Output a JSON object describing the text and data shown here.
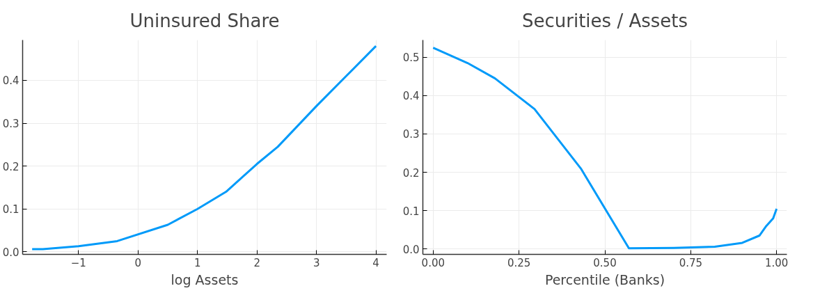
{
  "chart_data": [
    {
      "type": "line",
      "title": "Uninsured Share",
      "xlabel": "log Assets",
      "x": [
        -1.78,
        -1.6,
        -1.0,
        -0.35,
        0.5,
        1.0,
        1.48,
        2.0,
        2.35,
        3.0,
        3.5,
        4.0
      ],
      "series": [
        {
          "color": "#009af9",
          "values": [
            0.006,
            0.006,
            0.013,
            0.025,
            0.063,
            0.1,
            0.14,
            0.205,
            0.245,
            0.34,
            0.41,
            0.48
          ]
        }
      ],
      "xlim": [
        -1.94,
        4.18
      ],
      "ylim": [
        -0.006,
        0.494
      ],
      "xticks": [
        {
          "value": -1,
          "label": "−1"
        },
        0,
        1,
        2,
        3,
        4
      ],
      "yticks": [
        {
          "value": 0,
          "label": "0.0"
        },
        0.1,
        0.2,
        0.3,
        0.4
      ],
      "grid": true
    },
    {
      "type": "line",
      "title": "Securities / Assets",
      "xlabel": "Percentile (Banks)",
      "x": [
        0.0,
        0.1,
        0.18,
        0.295,
        0.43,
        0.57,
        0.7,
        0.82,
        0.9,
        0.95,
        0.97,
        0.99,
        1.0
      ],
      "series": [
        {
          "color": "#009af9",
          "values": [
            0.525,
            0.485,
            0.445,
            0.365,
            0.21,
            0.002,
            0.003,
            0.006,
            0.016,
            0.035,
            0.06,
            0.08,
            0.105
          ]
        }
      ],
      "xlim": [
        -0.03,
        1.03
      ],
      "ylim": [
        -0.014,
        0.545
      ],
      "xticks": [
        {
          "value": 0,
          "label": "0.00"
        },
        0.25,
        {
          "value": 0.5,
          "label": "0.50"
        },
        0.75,
        {
          "value": 1,
          "label": "1.00"
        }
      ],
      "yticks": [
        {
          "value": 0,
          "label": "0.0"
        },
        0.1,
        0.2,
        0.3,
        0.4,
        0.5
      ],
      "grid": true
    }
  ]
}
